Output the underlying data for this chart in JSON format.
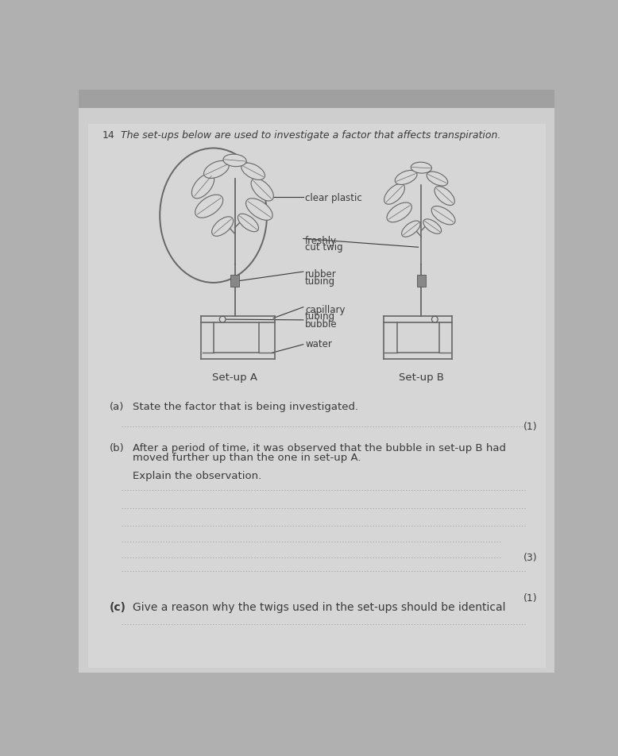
{
  "bg_top_color": "#b0b0b0",
  "page_color": "#d8d8d8",
  "text_color": "#3a3a3a",
  "line_color": "#555555",
  "question_number": "14",
  "intro_text": "The set-ups below are used to investigate a factor that affects transpiration.",
  "part_a_label": "(a)",
  "part_a_text": "State the factor that is being investigated.",
  "part_a_marks": "(1)",
  "part_b_label": "(b)",
  "part_b_text1": "After a period of time, it was observed that the bubble in set-up B had",
  "part_b_text2": "moved further up than the one in set-up A.",
  "part_b_subtext": "Explain the observation.",
  "part_b_marks": "(3)",
  "part_c_label": "(c)",
  "part_c_text": "Give a reason why the twigs used in the set-ups should be identical",
  "part_c_marks": "(1)",
  "label_clear_plastic": "clear plastic",
  "label_freshly": "freshly",
  "label_cut_twig": "cut twig",
  "label_rubber": "rubber",
  "label_tubing": "tubing",
  "label_capillary": "capillary",
  "label_tubing2": "tubing",
  "label_bubble": "bubble",
  "label_water": "water",
  "label_setup_a": "Set-up A",
  "label_setup_b": "Set-up B"
}
